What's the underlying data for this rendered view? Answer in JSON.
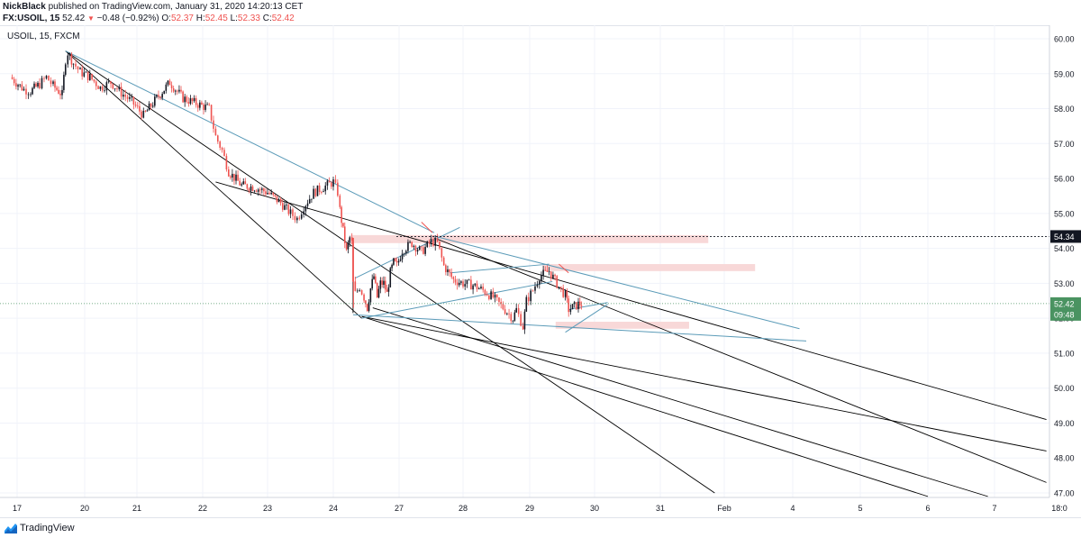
{
  "header": {
    "author": "NickBlack",
    "published": "published on TradingView.com, January 31, 2020 14:20:13 CET",
    "symbol_line": "FX:USOIL, 15",
    "last_price": "52.42",
    "change": "−0.48 (−0.92%)",
    "change_arrow": "▼",
    "ohlc": {
      "open_label": "O:",
      "open": "52.37",
      "high_label": "H:",
      "high": "52.45",
      "low_label": "L:",
      "low": "52.33",
      "close_label": "C:",
      "close": "52.42"
    }
  },
  "chart_legend": "USOIL, 15, FXCM",
  "footer": {
    "brand": "TradingView"
  },
  "colors": {
    "down": "#ef5350",
    "up": "#131722",
    "fib_line": "#000000",
    "blue_line": "#5b9bb8",
    "pink_zone": "#f8d8d8",
    "current_tag": "#4a9361",
    "grid": "#f0f3fa",
    "axis_text": "#131722"
  },
  "chart_data": {
    "type": "candlestick",
    "timeframe": "15",
    "symbol": "USOIL",
    "exchange": "FXCM",
    "ylim": [
      46.9,
      60.2
    ],
    "y_ticks": [
      "60.00",
      "59.00",
      "58.00",
      "57.00",
      "56.00",
      "55.00",
      "54.00",
      "53.00",
      "52.00",
      "51.00",
      "50.00",
      "49.00",
      "48.00",
      "47.00"
    ],
    "x_ticks": [
      "17",
      "20",
      "21",
      "22",
      "23",
      "24",
      "27",
      "28",
      "29",
      "30",
      "31",
      "Feb",
      "4",
      "5",
      "6",
      "7",
      "18:0"
    ],
    "price_path": [
      [
        16.9,
        58.9
      ],
      [
        17.3,
        58.55
      ],
      [
        17.6,
        58.5
      ],
      [
        18.0,
        58.7
      ],
      [
        18.3,
        58.9
      ],
      [
        18.6,
        58.65
      ],
      [
        19.0,
        58.4
      ],
      [
        19.15,
        59.4
      ],
      [
        19.25,
        59.6
      ],
      [
        19.5,
        59.3
      ],
      [
        19.8,
        59.05
      ],
      [
        20.1,
        58.9
      ],
      [
        20.3,
        58.6
      ],
      [
        20.5,
        58.75
      ],
      [
        20.7,
        58.45
      ],
      [
        20.9,
        58.2
      ],
      [
        21.1,
        57.8
      ],
      [
        21.3,
        58.3
      ],
      [
        21.5,
        58.75
      ],
      [
        21.7,
        58.3
      ],
      [
        21.9,
        58.15
      ],
      [
        22.1,
        58.0
      ],
      [
        22.2,
        57.2
      ],
      [
        22.3,
        56.8
      ],
      [
        22.4,
        56.2
      ],
      [
        22.6,
        55.8
      ],
      [
        22.8,
        55.75
      ],
      [
        23.0,
        55.6
      ],
      [
        23.2,
        55.3
      ],
      [
        23.35,
        55.0
      ],
      [
        23.45,
        54.85
      ],
      [
        23.55,
        55.2
      ],
      [
        23.7,
        55.6
      ],
      [
        23.85,
        55.75
      ],
      [
        24.0,
        55.9
      ],
      [
        24.2,
        55.6
      ],
      [
        24.3,
        55.1
      ],
      [
        24.45,
        54.5
      ],
      [
        24.6,
        53.9
      ],
      [
        24.75,
        54.3
      ],
      [
        24.85,
        54.15
      ],
      [
        24.9,
        53.0
      ],
      [
        25.0,
        52.7
      ],
      [
        25.2,
        52.9
      ],
      [
        25.4,
        52.6
      ],
      [
        25.55,
        52.3
      ],
      [
        25.7,
        52.85
      ],
      [
        25.85,
        53.2
      ],
      [
        26.0,
        52.6
      ],
      [
        26.15,
        53.0
      ],
      [
        26.3,
        53.0
      ],
      [
        26.45,
        52.7
      ],
      [
        26.6,
        53.3
      ],
      [
        26.75,
        53.6
      ],
      [
        26.9,
        53.5
      ],
      [
        27.05,
        53.95
      ],
      [
        27.2,
        54.15
      ],
      [
        27.35,
        53.9
      ],
      [
        27.5,
        54.2
      ],
      [
        27.6,
        54.15
      ],
      [
        27.7,
        53.5
      ],
      [
        27.85,
        53.1
      ],
      [
        28.0,
        53.0
      ],
      [
        28.15,
        52.95
      ],
      [
        28.3,
        52.8
      ],
      [
        28.45,
        52.6
      ],
      [
        28.6,
        52.3
      ],
      [
        28.75,
        52.0
      ],
      [
        28.8,
        52.25
      ],
      [
        28.9,
        51.75
      ],
      [
        28.95,
        52.5
      ],
      [
        29.05,
        52.8
      ],
      [
        29.15,
        53.2
      ],
      [
        29.3,
        53.35
      ],
      [
        29.45,
        52.9
      ],
      [
        29.55,
        52.65
      ],
      [
        29.6,
        52.25
      ],
      [
        29.75,
        52.4
      ],
      [
        29.8,
        52.42
      ]
    ],
    "annotations": {
      "resistance_level": 54.34,
      "current_price": 52.42,
      "current_price_label": "52.42",
      "resistance_label": "54.34",
      "countdown_label": "09:48"
    }
  }
}
